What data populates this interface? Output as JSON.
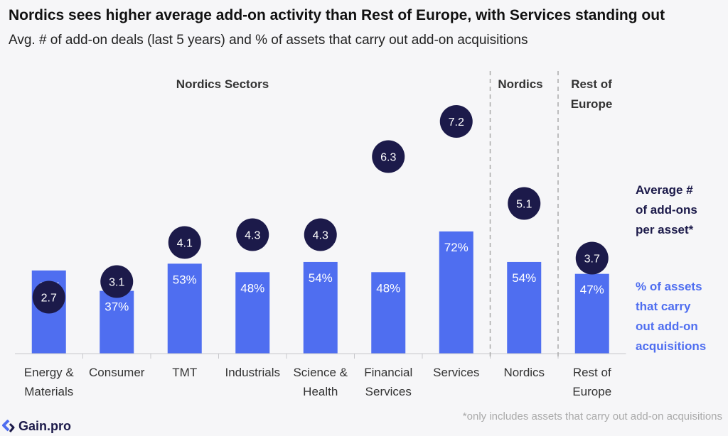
{
  "header": {
    "title": "Nordics sees higher average add-on activity than Rest of Europe, with Services standing out",
    "subtitle": "Avg. # of add-on deals (last 5 years) and % of assets that carry out add-on acquisitions"
  },
  "groups": {
    "sectors": "Nordics Sectors",
    "nordics": "Nordics",
    "rest_line1": "Rest of",
    "rest_line2": "Europe"
  },
  "legend": {
    "avg_line1": "Average #",
    "avg_line2": "of add-ons",
    "avg_line3": "per asset*",
    "pct_line1": "% of assets",
    "pct_line2": "that carry",
    "pct_line3": "out add-on",
    "pct_line4": "acquisitions"
  },
  "footnote": "*only includes assets that carry out add-on acquisitions",
  "logo": {
    "text": "Gain.pro",
    "icon": "gain-pro-logo-icon"
  },
  "colors": {
    "bar": "#4f6ef0",
    "bubble": "#1c1a4a",
    "bubble_text": "#ffffff",
    "bar_text": "#ffffff"
  },
  "chart_data": {
    "type": "bar",
    "categories": [
      [
        "Energy &",
        "Materials"
      ],
      [
        "Consumer"
      ],
      [
        "TMT"
      ],
      [
        "Industrials"
      ],
      [
        "Science &",
        "Health"
      ],
      [
        "Financial",
        "Services"
      ],
      [
        "Services"
      ],
      [
        "Nordics"
      ],
      [
        "Rest of",
        "Europe"
      ]
    ],
    "series": [
      {
        "name": "% of assets that carry out add-on acquisitions",
        "values": [
          49,
          37,
          53,
          48,
          54,
          48,
          72,
          54,
          47
        ],
        "labels": [
          "49%",
          "37%",
          "53%",
          "48%",
          "54%",
          "48%",
          "72%",
          "54%",
          "47%"
        ]
      },
      {
        "name": "Average # of add-ons per asset*",
        "values": [
          2.7,
          3.1,
          4.1,
          4.3,
          4.3,
          6.3,
          7.2,
          5.1,
          3.7
        ],
        "labels": [
          "2.7",
          "3.1",
          "4.1",
          "4.3",
          "4.3",
          "6.3",
          "7.2",
          "5.1",
          "3.7"
        ]
      }
    ],
    "separators_after_index": [
      6,
      7
    ],
    "grid": false
  }
}
